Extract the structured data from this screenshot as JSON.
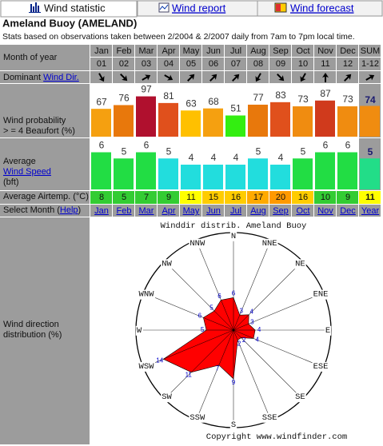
{
  "tabs": [
    "Wind statistic",
    "Wind report",
    "Wind forecast"
  ],
  "header": {
    "title": "Ameland Buoy (AMELAND)",
    "subtitle": "Stats based on observations taken between 2/2004 & 2/2007 daily from 7am to 7pm local time."
  },
  "table": {
    "month_label": "Month of year",
    "months": [
      "Jan",
      "Feb",
      "Mar",
      "Apr",
      "May",
      "Jun",
      "Jul",
      "Aug",
      "Sep",
      "Oct",
      "Nov",
      "Dec",
      "SUM"
    ],
    "month_numbers": [
      "01",
      "02",
      "03",
      "04",
      "05",
      "06",
      "07",
      "08",
      "09",
      "10",
      "11",
      "12",
      "1-12"
    ],
    "dominant": {
      "label": "Dominant",
      "link": "Wind Dir.",
      "directions": [
        150,
        135,
        60,
        120,
        45,
        45,
        45,
        210,
        135,
        210,
        0,
        45,
        60
      ]
    },
    "probability": {
      "label": [
        "Wind probability",
        "> = 4 Beaufort (%)"
      ],
      "values": [
        67,
        76,
        97,
        81,
        63,
        68,
        51,
        77,
        83,
        73,
        87,
        73,
        74
      ],
      "colors": [
        "#f5a010",
        "#e8780c",
        "#b0102e",
        "#e0501c",
        "#ffc000",
        "#f5a010",
        "#33ee11",
        "#e8780c",
        "#e0501c",
        "#f08c10",
        "#d03a1c",
        "#f08c10",
        "#f08c10"
      ],
      "ylim": [
        0,
        100
      ]
    },
    "speed": {
      "label": "Average",
      "link": "Wind Speed",
      "unit": "(bft)",
      "values": [
        6,
        5,
        6,
        5,
        4,
        4,
        4,
        5,
        4,
        5,
        6,
        6,
        5
      ],
      "colors": [
        "#22dd44",
        "#22dd44",
        "#22dd44",
        "#22dddd",
        "#22dddd",
        "#22dddd",
        "#22dddd",
        "#22dddd",
        "#22dddd",
        "#22dd44",
        "#22dd44",
        "#22dd44",
        "#22dd88"
      ],
      "ylim": [
        0,
        8
      ]
    },
    "airtemp": {
      "label": "Average Airtemp. (°C)",
      "values": [
        8,
        5,
        7,
        9,
        11,
        15,
        16,
        17,
        20,
        16,
        10,
        9,
        11
      ],
      "colors": [
        "#33cc33",
        "#33cc33",
        "#33cc33",
        "#33cc33",
        "#ffff00",
        "#ffcc00",
        "#ffcc00",
        "#ffaa00",
        "#ff9900",
        "#ffcc00",
        "#33cc33",
        "#33cc33",
        "#ffff00"
      ]
    },
    "select": {
      "label": "Select Month (",
      "link": "Help",
      "close": ")",
      "links": [
        "Jan",
        "Feb",
        "Mar",
        "Apr",
        "May",
        "Jun",
        "Jul",
        "Aug",
        "Sep",
        "Oct",
        "Nov",
        "Dec",
        "Year"
      ]
    },
    "distribution": {
      "label": [
        "Wind direction",
        "distribution (%)"
      ]
    }
  },
  "chart_data": {
    "type": "rose",
    "title": "Winddir distrib. Ameland Buoy",
    "directions": [
      "N",
      "NNE",
      "NE",
      "ENE",
      "E",
      "ESE",
      "SE",
      "SSE",
      "S",
      "SSW",
      "SW",
      "WSW",
      "W",
      "WNW",
      "NW",
      "NNW"
    ],
    "values": [
      6,
      3,
      4,
      3,
      4,
      4,
      2,
      2,
      9,
      7,
      11,
      14,
      5,
      6,
      5,
      6
    ],
    "rlim": [
      0,
      18
    ],
    "color": "#ff0000",
    "copyright": "Copyright www.windfinder.com"
  }
}
